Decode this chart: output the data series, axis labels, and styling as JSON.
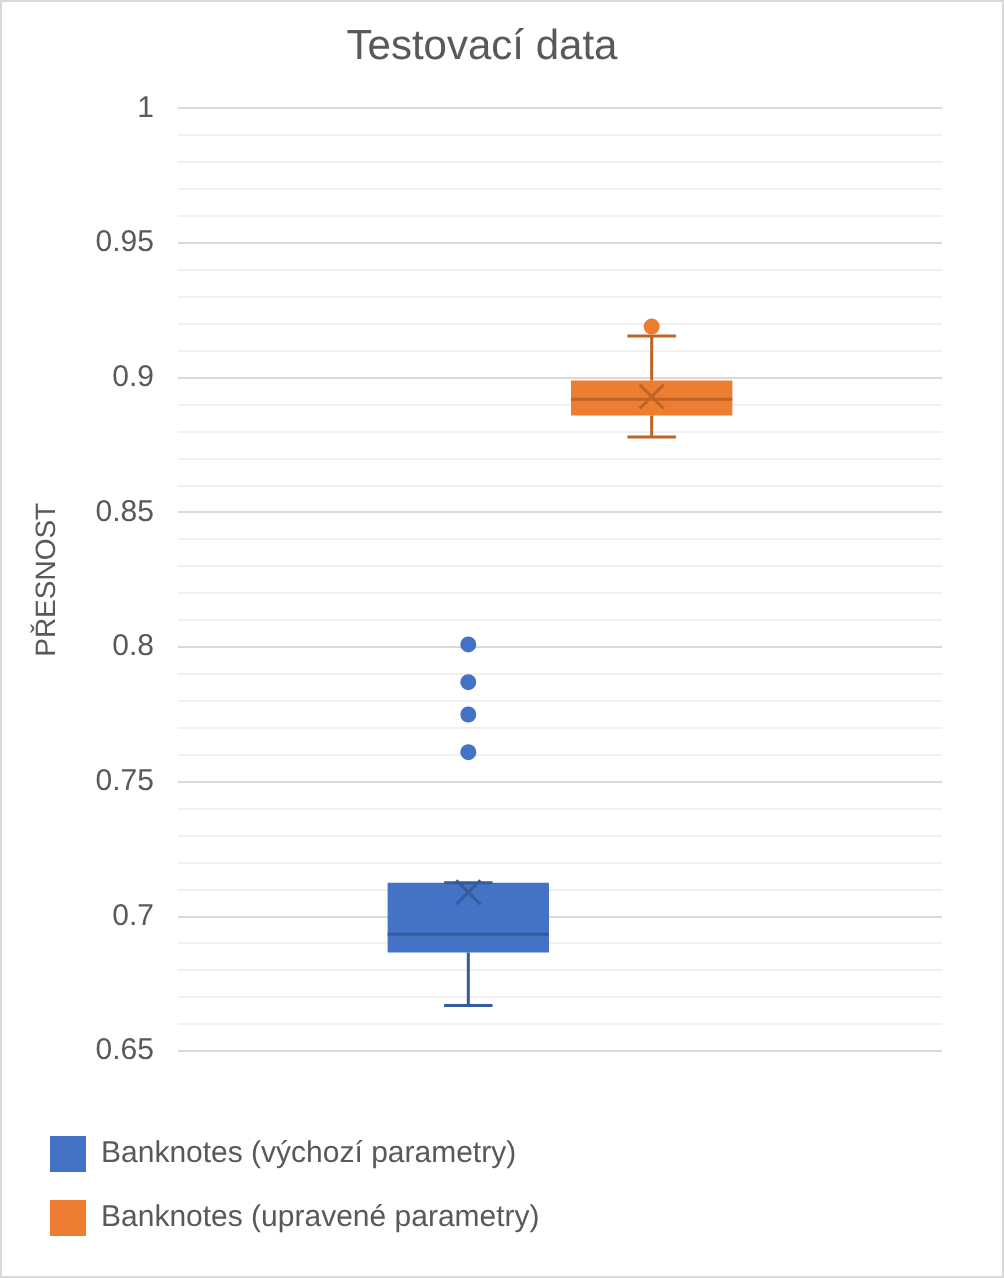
{
  "chart_data": {
    "type": "box",
    "title": "Testovací data",
    "ylabel": "PŘESNOST",
    "categories": [
      null
    ],
    "series": [
      {
        "name": "Banknotes (výchozí parametry)",
        "color": "#4472c4",
        "boxes": [
          {
            "low": 0.667,
            "q1": 0.6866,
            "median": 0.6934,
            "q3": 0.7125,
            "high": 0.7125,
            "mean": 0.709,
            "outliers": [
              0.761,
              0.775,
              0.787,
              0.801
            ]
          }
        ]
      },
      {
        "name": "Banknotes (upravené parametry)",
        "color": "#ed7d31",
        "boxes": [
          {
            "low": 0.878,
            "q1": 0.886,
            "median": 0.892,
            "q3": 0.899,
            "high": 0.9155,
            "mean": 0.893,
            "outliers": [
              0.919
            ]
          }
        ]
      }
    ],
    "ylim": [
      0.65,
      1
    ],
    "yticks": [
      0.65,
      {
        "value": 0.66,
        "label": null
      },
      {
        "value": 0.67,
        "label": null
      },
      {
        "value": 0.68,
        "label": null
      },
      {
        "value": 0.69,
        "label": null
      },
      0.7,
      {
        "value": 0.71,
        "label": null
      },
      {
        "value": 0.72,
        "label": null
      },
      {
        "value": 0.73,
        "label": null
      },
      {
        "value": 0.74,
        "label": null
      },
      0.75,
      {
        "value": 0.76,
        "label": null
      },
      {
        "value": 0.77,
        "label": null
      },
      {
        "value": 0.78,
        "label": null
      },
      {
        "value": 0.79,
        "label": null
      },
      0.8,
      {
        "value": 0.81,
        "label": null
      },
      {
        "value": 0.82,
        "label": null
      },
      {
        "value": 0.83,
        "label": null
      },
      {
        "value": 0.84,
        "label": null
      },
      0.85,
      {
        "value": 0.86,
        "label": null
      },
      {
        "value": 0.87,
        "label": null
      },
      {
        "value": 0.88,
        "label": null
      },
      {
        "value": 0.89,
        "label": null
      },
      0.9,
      {
        "value": 0.91,
        "label": null
      },
      {
        "value": 0.92,
        "label": null
      },
      {
        "value": 0.93,
        "label": null
      },
      {
        "value": 0.94,
        "label": null
      },
      0.95,
      {
        "value": 0.96,
        "label": null
      },
      {
        "value": 0.97,
        "label": null
      },
      {
        "value": 0.98,
        "label": null
      },
      {
        "value": 0.99,
        "label": null
      },
      1
    ],
    "grid": "y",
    "legend": "bottom",
    "marker": "circle"
  }
}
